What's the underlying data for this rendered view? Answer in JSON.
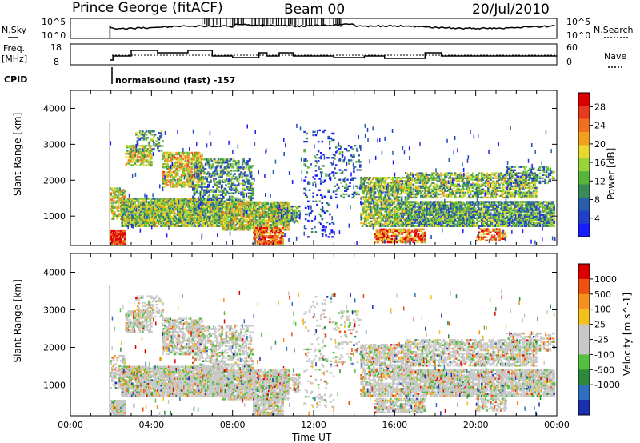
{
  "header": {
    "station": "Prince George (fitACF)",
    "beam": "Beam 00",
    "date": "20/Jul/2010"
  },
  "strip_labels": {
    "nsky": "N.Sky",
    "nsky_ticks": [
      "10^5",
      "10^0"
    ],
    "nsearch": "N.Search",
    "nsearch_ticks": [
      "10^5",
      "10^0"
    ],
    "freq": "Freq.",
    "freq_unit": "[MHz]",
    "freq_ticks": [
      "18",
      "8"
    ],
    "nave": "Nave",
    "nave_ticks": [
      "60",
      "0"
    ],
    "cpid": "CPID",
    "cpid_text": "normalsound (fast) -157"
  },
  "chart_data": [
    {
      "type": "heatmap",
      "title": "",
      "xlabel": "Time UT",
      "ylabel": "Slant Range [km]",
      "x_ticks": [
        "00:00",
        "04:00",
        "08:00",
        "12:00",
        "16:00",
        "20:00",
        "00:00"
      ],
      "xlim": [
        0,
        24
      ],
      "ylim": [
        180,
        4500
      ],
      "y_ticks": [
        1000,
        2000,
        3000,
        4000
      ],
      "colorbar": {
        "label": "Power [dB]",
        "ticks": [
          "4",
          "8",
          "12",
          "16",
          "20",
          "24",
          "28"
        ],
        "range": [
          0,
          30
        ],
        "colors": [
          "#1a1aff",
          "#2340c8",
          "#2a5ea8",
          "#3b8a5a",
          "#58b43a",
          "#9ad23a",
          "#e8d830",
          "#f0a020",
          "#f07020",
          "#e83a20",
          "#dd0000"
        ]
      },
      "data_start_hour": 1.95
    },
    {
      "type": "heatmap",
      "title": "",
      "xlabel": "Time UT",
      "ylabel": "Slant Range [km]",
      "x_ticks": [
        "00:00",
        "04:00",
        "08:00",
        "12:00",
        "16:00",
        "20:00",
        "00:00"
      ],
      "xlim": [
        0,
        24
      ],
      "ylim": [
        180,
        4500
      ],
      "y_ticks": [
        1000,
        2000,
        3000,
        4000
      ],
      "colorbar": {
        "label": "Velocity [m s^-1]",
        "ticks": [
          "1000",
          "500",
          "100",
          "25",
          "-25",
          "-100",
          "-500",
          "-1000"
        ],
        "range": [
          -1200,
          1200
        ],
        "colors": [
          "#1a2fb0",
          "#2f6fc0",
          "#2e8a3a",
          "#55c040",
          "#c8c8c8",
          "#c8c8c8",
          "#f4c020",
          "#f29020",
          "#ee5010",
          "#dd0000"
        ]
      },
      "data_start_hour": 1.95
    }
  ]
}
